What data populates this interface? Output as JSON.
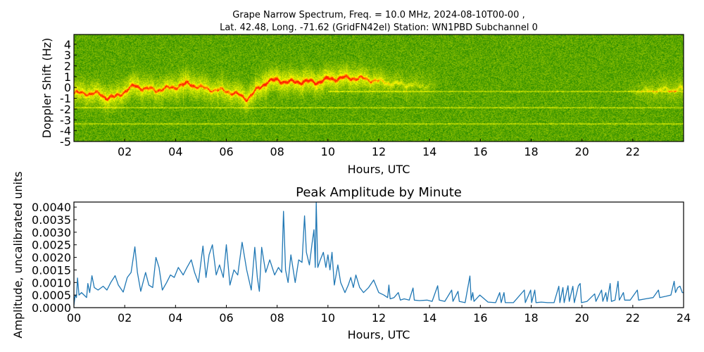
{
  "chart_data": [
    {
      "type": "heatmap",
      "title_lines": [
        "Grape Narrow Spectrum, Freq. = 10.0 MHz, 2024-08-10T00-00 ,",
        "Lat.  42.48, Long. -71.62 (GridFN42el) Station: WN1PBD Subchannel 0"
      ],
      "xlabel": "Hours, UTC",
      "ylabel": "Doppler Shift (Hz)",
      "xlim": [
        0,
        24
      ],
      "ylim": [
        -5,
        4.9
      ],
      "xticks": [
        2,
        4,
        6,
        8,
        10,
        12,
        14,
        16,
        18,
        20,
        22
      ],
      "xtick_labels": [
        "02",
        "04",
        "06",
        "08",
        "10",
        "12",
        "14",
        "16",
        "18",
        "20",
        "22"
      ],
      "yticks": [
        4,
        3,
        2,
        1,
        0,
        -1,
        -2,
        -3,
        -4,
        -5
      ],
      "ytick_labels": [
        "4",
        "3",
        "2",
        "1",
        "0",
        "-1",
        "-2",
        "-3",
        "-4",
        "-5"
      ],
      "colormap": [
        "#0a7a00",
        "#ffff00",
        "#ff2000"
      ],
      "signal_trace": {
        "hours": [
          0,
          0.5,
          1.0,
          1.3,
          1.6,
          2.0,
          2.4,
          2.8,
          3.2,
          3.6,
          4.0,
          4.5,
          5.0,
          5.5,
          6.0,
          6.4,
          6.8,
          7.2,
          7.6,
          8.0,
          8.5,
          9.0,
          9.5,
          10.0,
          10.5,
          11.0,
          11.5,
          12.0,
          12.5,
          13.0,
          13.5,
          14.0,
          14.4,
          21.6,
          22.5,
          23.2,
          24.0
        ],
        "doppler": [
          -0.5,
          -0.5,
          -0.6,
          -0.9,
          -0.9,
          -0.3,
          0.2,
          -0.1,
          -0.2,
          -0.1,
          0.1,
          0.4,
          0.0,
          -0.2,
          -0.3,
          -0.6,
          -1.0,
          -0.2,
          0.6,
          0.7,
          0.5,
          0.6,
          0.5,
          0.8,
          0.9,
          0.9,
          0.8,
          0.6,
          0.4,
          0.3,
          0.2,
          0.2,
          0.2,
          -0.3,
          -0.3,
          -0.2,
          -0.1
        ],
        "strength": [
          0.8,
          0.8,
          0.85,
          0.9,
          0.85,
          0.85,
          0.9,
          0.85,
          0.8,
          0.8,
          0.85,
          0.9,
          0.8,
          0.7,
          0.75,
          0.85,
          0.9,
          0.85,
          0.95,
          0.95,
          0.95,
          0.95,
          0.95,
          0.95,
          0.9,
          0.85,
          0.75,
          0.6,
          0.45,
          0.35,
          0.3,
          0.2,
          0.0,
          0.0,
          0.3,
          0.4,
          0.45
        ]
      },
      "horizontal_lines_hz": [
        -1.83,
        -3.35,
        -0.33
      ]
    },
    {
      "type": "line",
      "title": "Peak Amplitude by Minute",
      "xlabel": "Hours, UTC",
      "ylabel": "Amplitude, uncalibrated units",
      "xlim": [
        0,
        24
      ],
      "ylim": [
        0,
        0.0042
      ],
      "xticks": [
        0,
        2,
        4,
        6,
        8,
        10,
        12,
        14,
        16,
        18,
        20,
        22,
        24
      ],
      "xtick_labels": [
        "00",
        "02",
        "04",
        "06",
        "08",
        "10",
        "12",
        "14",
        "16",
        "18",
        "20",
        "22",
        "24"
      ],
      "yticks": [
        0,
        0.0005,
        0.001,
        0.0015,
        0.002,
        0.0025,
        0.003,
        0.0035,
        0.004
      ],
      "ytick_labels": [
        "0.0000",
        "0.0005",
        "0.0010",
        "0.0015",
        "0.0020",
        "0.0025",
        "0.0030",
        "0.0035",
        "0.0040"
      ],
      "color": "#1f77b4",
      "x": [
        0,
        0.05,
        0.1,
        0.14,
        0.2,
        0.3,
        0.4,
        0.5,
        0.55,
        0.62,
        0.71,
        0.8,
        0.95,
        1.15,
        1.3,
        1.45,
        1.62,
        1.75,
        1.94,
        2.1,
        2.25,
        2.4,
        2.5,
        2.63,
        2.82,
        2.95,
        3.1,
        3.23,
        3.35,
        3.48,
        3.65,
        3.8,
        3.95,
        4.11,
        4.3,
        4.45,
        4.62,
        4.75,
        4.9,
        5.08,
        5.2,
        5.32,
        5.45,
        5.6,
        5.73,
        5.88,
        6.0,
        6.14,
        6.3,
        6.45,
        6.62,
        6.8,
        6.98,
        7.12,
        7.22,
        7.3,
        7.39,
        7.55,
        7.71,
        7.9,
        8.05,
        8.18,
        8.25,
        8.33,
        8.43,
        8.54,
        8.71,
        8.85,
        8.98,
        9.08,
        9.15,
        9.27,
        9.38,
        9.45,
        9.5,
        9.54,
        9.6,
        9.7,
        9.82,
        9.92,
        10.0,
        10.08,
        10.16,
        10.25,
        10.39,
        10.5,
        10.67,
        10.8,
        10.9,
        11.0,
        11.1,
        11.25,
        11.4,
        11.6,
        11.8,
        12.0,
        12.2,
        12.35,
        12.4,
        12.45,
        12.6,
        12.77,
        12.85,
        13.0,
        13.2,
        13.35,
        13.4,
        13.6,
        13.9,
        14.1,
        14.32,
        14.38,
        14.6,
        14.87,
        14.92,
        15.12,
        15.17,
        15.4,
        15.59,
        15.64,
        15.7,
        15.75,
        15.98,
        16.3,
        16.6,
        16.76,
        16.82,
        16.93,
        16.98,
        17.3,
        17.73,
        17.77,
        17.98,
        18.02,
        18.14,
        18.19,
        18.4,
        18.65,
        18.9,
        19.09,
        19.13,
        19.25,
        19.3,
        19.45,
        19.5,
        19.64,
        19.7,
        19.86,
        19.93,
        19.98,
        20.2,
        20.5,
        20.55,
        20.77,
        20.82,
        20.94,
        20.99,
        21.11,
        21.16,
        21.3,
        21.42,
        21.47,
        21.63,
        21.68,
        21.9,
        22.18,
        22.23,
        22.5,
        22.8,
        23.01,
        23.06,
        23.3,
        23.5,
        23.63,
        23.68,
        23.77,
        23.86,
        23.95,
        24.0
      ],
      "y": [
        0.0001,
        0.0005,
        0.0004,
        0.00118,
        0.0005,
        0.0006,
        0.0005,
        0.0004,
        0.00096,
        0.0006,
        0.00127,
        0.0008,
        0.0007,
        0.00085,
        0.0007,
        0.001,
        0.00127,
        0.0009,
        0.00062,
        0.0012,
        0.0014,
        0.00242,
        0.0014,
        0.00065,
        0.0014,
        0.0009,
        0.0008,
        0.002,
        0.0016,
        0.0007,
        0.001,
        0.0013,
        0.0012,
        0.0016,
        0.0013,
        0.0016,
        0.0019,
        0.0014,
        0.001,
        0.00245,
        0.0012,
        0.0021,
        0.0025,
        0.0013,
        0.0017,
        0.0012,
        0.0025,
        0.0009,
        0.0015,
        0.0013,
        0.0026,
        0.0015,
        0.0007,
        0.0024,
        0.0012,
        0.00065,
        0.0024,
        0.0014,
        0.0019,
        0.0013,
        0.0016,
        0.0014,
        0.00383,
        0.0015,
        0.001,
        0.0021,
        0.001,
        0.0019,
        0.0018,
        0.00365,
        0.0022,
        0.0017,
        0.0026,
        0.0031,
        0.0016,
        0.0042,
        0.0016,
        0.0019,
        0.0022,
        0.0016,
        0.0021,
        0.0015,
        0.0022,
        0.0009,
        0.0017,
        0.001,
        0.0006,
        0.0009,
        0.0012,
        0.0008,
        0.0013,
        0.0008,
        0.0006,
        0.0008,
        0.0011,
        0.0006,
        0.0005,
        0.0004,
        0.0009,
        0.00035,
        0.0004,
        0.0006,
        0.0003,
        0.00035,
        0.0003,
        0.00078,
        0.0003,
        0.00028,
        0.0003,
        0.00025,
        0.00087,
        0.0003,
        0.00025,
        0.0007,
        0.00025,
        0.00065,
        0.00025,
        0.0002,
        0.00126,
        0.0003,
        0.0006,
        0.00025,
        0.0005,
        0.00022,
        0.0002,
        0.0006,
        0.0002,
        0.0006,
        0.0002,
        0.0002,
        0.0007,
        0.0002,
        0.0007,
        0.0002,
        0.0007,
        0.0002,
        0.00022,
        0.0002,
        0.0002,
        0.00085,
        0.0002,
        0.0008,
        0.0002,
        0.00087,
        0.00025,
        0.00085,
        0.0002,
        0.00087,
        0.00096,
        0.0002,
        0.00025,
        0.00055,
        0.00025,
        0.0007,
        0.00025,
        0.0006,
        0.00025,
        0.00096,
        0.00025,
        0.0003,
        0.00105,
        0.0003,
        0.0006,
        0.0003,
        0.0003,
        0.0007,
        0.0003,
        0.00035,
        0.0004,
        0.0007,
        0.0004,
        0.00045,
        0.0005,
        0.00105,
        0.0006,
        0.0008,
        0.00085,
        0.0006,
        0.0006
      ]
    }
  ]
}
